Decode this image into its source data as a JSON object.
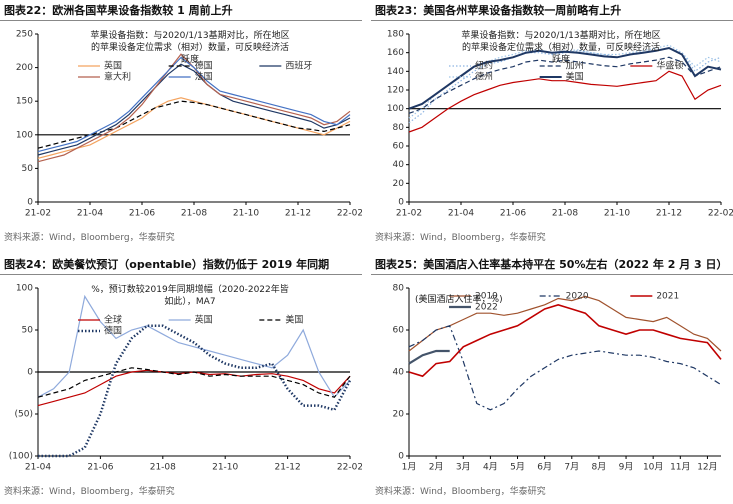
{
  "chart_data": [
    {
      "type": "line",
      "title": "图表22：欧洲各国苹果设备指数较 1 周前上升",
      "subtitle": "苹果设备指数：与2020/1/13基期对比，所在地区的苹果设备定位需求（相对）数量，可反映经济活跃度",
      "source": "资料来源：Wind，Bloomberg，华泰研究",
      "categories": [
        "21-02",
        null,
        null,
        null,
        "21-04",
        null,
        null,
        null,
        "21-06",
        null,
        null,
        null,
        "21-08",
        null,
        null,
        null,
        "21-10",
        null,
        null,
        null,
        "21-12",
        null,
        null,
        null,
        "22-02"
      ],
      "ylim": [
        0,
        250
      ],
      "yticks": [
        0,
        50,
        100,
        150,
        200,
        250
      ],
      "reference_line": 100,
      "grid": false,
      "legend": "top",
      "series": [
        {
          "name": "英国",
          "color": "#f4a460",
          "dash": "solid",
          "values": [
            65,
            70,
            75,
            80,
            85,
            95,
            105,
            115,
            125,
            140,
            150,
            155,
            150,
            145,
            140,
            135,
            130,
            125,
            120,
            115,
            110,
            105,
            100,
            110,
            120
          ]
        },
        {
          "name": "德国",
          "color": "#000000",
          "dash": "dashed",
          "values": [
            80,
            85,
            90,
            95,
            100,
            105,
            110,
            120,
            130,
            140,
            145,
            150,
            148,
            145,
            140,
            135,
            130,
            125,
            120,
            115,
            110,
            108,
            105,
            110,
            115
          ]
        },
        {
          "name": "西班牙",
          "color": "#1f3864",
          "dash": "solid",
          "values": [
            70,
            75,
            80,
            85,
            95,
            105,
            115,
            130,
            150,
            170,
            190,
            205,
            195,
            175,
            160,
            150,
            145,
            140,
            135,
            130,
            125,
            120,
            110,
            115,
            125
          ]
        },
        {
          "name": "意大利",
          "color": "#b5624f",
          "dash": "solid",
          "values": [
            60,
            65,
            70,
            80,
            90,
            100,
            110,
            125,
            145,
            170,
            195,
            220,
            200,
            175,
            160,
            155,
            150,
            145,
            140,
            135,
            130,
            125,
            115,
            120,
            135
          ]
        },
        {
          "name": "法国",
          "color": "#4472c4",
          "dash": "solid",
          "values": [
            75,
            80,
            85,
            90,
            100,
            110,
            120,
            135,
            155,
            175,
            195,
            215,
            200,
            180,
            165,
            160,
            155,
            150,
            145,
            140,
            135,
            130,
            120,
            115,
            130
          ]
        }
      ]
    },
    {
      "type": "line",
      "title": "图表23：美国各州苹果设备指数较一周前略有上升",
      "subtitle": "苹果设备指数：与2020/1/13基期对比，所在地区的苹果设备定位需求（相对）数量，可反映经济活跃度",
      "source": "资料来源：Wind，Bloomberg，华泰研究",
      "categories": [
        "21-02",
        null,
        null,
        null,
        "21-04",
        null,
        null,
        null,
        "21-06",
        null,
        null,
        null,
        "21-08",
        null,
        null,
        null,
        "21-10",
        null,
        null,
        null,
        "21-12",
        null,
        null,
        null,
        "22-02"
      ],
      "ylim": [
        0,
        180
      ],
      "yticks": [
        0,
        20,
        40,
        60,
        80,
        100,
        120,
        140,
        160,
        180
      ],
      "reference_line": 100,
      "grid": false,
      "legend": "top",
      "series": [
        {
          "name": "纽约",
          "color": "#8db4e2",
          "dash": "dotted",
          "values": [
            85,
            95,
            110,
            120,
            130,
            140,
            148,
            150,
            155,
            160,
            160,
            158,
            160,
            162,
            160,
            158,
            155,
            158,
            160,
            162,
            165,
            160,
            140,
            150,
            155
          ]
        },
        {
          "name": "加州",
          "color": "#1f3864",
          "dash": "dashed",
          "values": [
            95,
            100,
            110,
            118,
            125,
            132,
            138,
            142,
            145,
            150,
            152,
            150,
            152,
            150,
            148,
            146,
            145,
            148,
            150,
            152,
            155,
            150,
            135,
            140,
            145
          ]
        },
        {
          "name": "华盛顿",
          "color": "#c00000",
          "dash": "solid",
          "values": [
            75,
            80,
            90,
            100,
            108,
            115,
            120,
            125,
            128,
            130,
            132,
            130,
            130,
            128,
            126,
            125,
            124,
            126,
            128,
            130,
            140,
            135,
            110,
            120,
            125
          ]
        },
        {
          "name": "德州",
          "color": "#9dc3e6",
          "dash": "dotted",
          "values": [
            90,
            100,
            115,
            125,
            135,
            145,
            150,
            155,
            158,
            162,
            163,
            160,
            162,
            163,
            160,
            158,
            158,
            160,
            162,
            165,
            168,
            160,
            145,
            155,
            150
          ]
        },
        {
          "name": "美国",
          "color": "#1f3864",
          "dash": "solid",
          "width": 2,
          "values": [
            100,
            105,
            115,
            125,
            135,
            145,
            150,
            152,
            155,
            160,
            162,
            160,
            161,
            160,
            158,
            156,
            155,
            158,
            160,
            162,
            165,
            158,
            135,
            145,
            142
          ]
        }
      ]
    },
    {
      "type": "line",
      "title": "图表24：欧美餐饮预订（opentable）指数仍低于 2019 年同期",
      "subtitle": "%，预订数较2019年同期增幅（2020-2022年皆如此），MA7",
      "source": "资料来源：Wind，Bloomberg，华泰研究",
      "categories": [
        "21-04",
        null,
        null,
        null,
        "21-06",
        null,
        null,
        null,
        "21-08",
        null,
        null,
        null,
        "21-10",
        null,
        null,
        null,
        "21-12",
        null,
        null,
        null,
        "22-02"
      ],
      "ylim": [
        -100,
        100
      ],
      "yticks": [
        100,
        50,
        0,
        {
          "value": -50,
          "label": "(50)"
        },
        {
          "value": -100,
          "label": "(100)"
        }
      ],
      "reference_line": 0,
      "grid": false,
      "legend": "top",
      "series": [
        {
          "name": "全球",
          "color": "#c00000",
          "dash": "solid",
          "values": [
            -40,
            -35,
            -30,
            -25,
            -15,
            -5,
            0,
            2,
            0,
            -2,
            0,
            -3,
            -2,
            -5,
            -3,
            -2,
            -5,
            -10,
            -20,
            -25,
            -5
          ]
        },
        {
          "name": "英国",
          "color": "#8faadc",
          "dash": "solid",
          "values": [
            -30,
            -20,
            0,
            90,
            60,
            40,
            50,
            55,
            45,
            35,
            30,
            25,
            20,
            15,
            10,
            5,
            20,
            50,
            0,
            -30,
            -10
          ]
        },
        {
          "name": "美国",
          "color": "#000000",
          "dash": "dashed",
          "values": [
            -30,
            -25,
            -20,
            -10,
            -5,
            0,
            5,
            3,
            0,
            -3,
            0,
            -5,
            -3,
            -5,
            -5,
            -5,
            -10,
            -15,
            -25,
            -30,
            -5
          ]
        },
        {
          "name": "德国",
          "color": "#1f3864",
          "dash": "dotted",
          "width": 2.5,
          "values": [
            -100,
            -100,
            -100,
            -90,
            -50,
            10,
            40,
            55,
            55,
            45,
            35,
            20,
            10,
            5,
            5,
            10,
            -20,
            -40,
            -40,
            -45,
            -10
          ]
        }
      ]
    },
    {
      "type": "line",
      "title": "图表25：美国酒店入住率基本持平在 50%左右（2022 年 2 月 3 日）",
      "subtitle": "(美国酒店入住率，%)",
      "source": "资料来源：Wind，Bloomberg，华泰研究",
      "categories": [
        "1月",
        null,
        "2月",
        null,
        "3月",
        null,
        "4月",
        null,
        "5月",
        null,
        "6月",
        null,
        "7月",
        null,
        "8月",
        null,
        "9月",
        null,
        "10月",
        null,
        "11月",
        null,
        "12月",
        null
      ],
      "ylim": [
        0,
        80
      ],
      "yticks": [
        0,
        20,
        40,
        60,
        80
      ],
      "grid": false,
      "legend": "top",
      "series": [
        {
          "name": "2019",
          "color": "#a0522d",
          "dash": "solid",
          "values": [
            50,
            55,
            60,
            62,
            65,
            68,
            68,
            67,
            68,
            70,
            72,
            75,
            74,
            76,
            74,
            70,
            66,
            65,
            64,
            66,
            62,
            58,
            56,
            50
          ]
        },
        {
          "name": "2020",
          "color": "#1f3864",
          "dash": "dashdot",
          "values": [
            52,
            55,
            60,
            62,
            45,
            25,
            22,
            25,
            32,
            38,
            42,
            46,
            48,
            49,
            50,
            49,
            48,
            48,
            47,
            45,
            44,
            42,
            38,
            34
          ]
        },
        {
          "name": "2021",
          "color": "#c00000",
          "dash": "solid",
          "width": 1.6,
          "values": [
            40,
            38,
            44,
            45,
            52,
            55,
            58,
            60,
            62,
            66,
            70,
            72,
            70,
            68,
            62,
            60,
            58,
            60,
            60,
            58,
            56,
            55,
            54,
            46
          ]
        },
        {
          "name": "2022",
          "color": "#44546a",
          "dash": "solid",
          "width": 2.2,
          "values": [
            44,
            48,
            50,
            50,
            null,
            null,
            null,
            null,
            null,
            null,
            null,
            null,
            null,
            null,
            null,
            null,
            null,
            null,
            null,
            null,
            null,
            null,
            null,
            null
          ]
        }
      ]
    }
  ]
}
